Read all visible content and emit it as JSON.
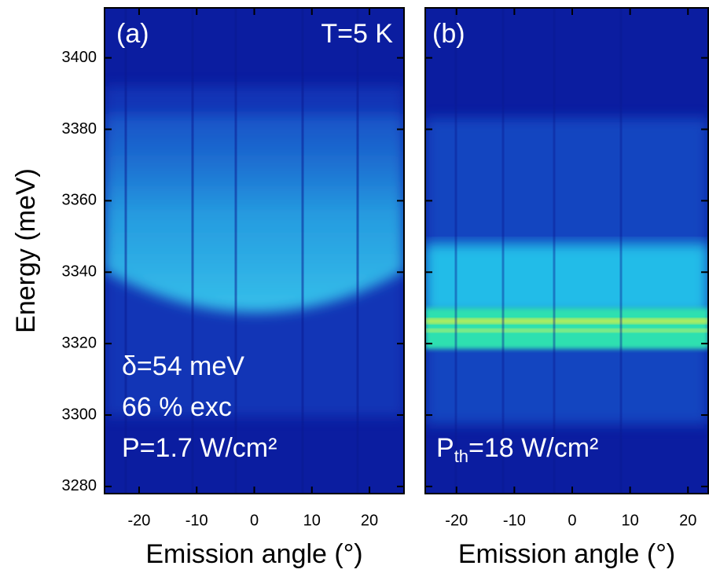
{
  "chart_data": [
    {
      "type": "heatmap",
      "ylabel": "Energy (meV)",
      "xlabel": "Emission angle (°)",
      "xlim": [
        -26,
        26
      ],
      "xticks": [
        -20,
        -10,
        0,
        10,
        20
      ],
      "ylim": [
        3278,
        3414
      ],
      "yticks": [
        3280,
        3300,
        3320,
        3340,
        3360,
        3380,
        3400
      ],
      "annotations": [
        "(a)",
        "T=5 K",
        "δ=54 meV",
        "66 % exc",
        "P=1.7 W/cm²"
      ]
    },
    {
      "type": "heatmap",
      "xlabel": "Emission angle (°)",
      "xlim": [
        -25.4,
        23.5
      ],
      "xticks": [
        -20,
        -10,
        0,
        10,
        20
      ],
      "ylim": [
        3278,
        3414
      ],
      "yticks": [
        3280,
        3300,
        3320,
        3340,
        3360,
        3380,
        3400
      ],
      "annotations": [
        "(b)"
      ],
      "power_label": {
        "base": "P",
        "sub": "th",
        "rest": "=18 W/cm²"
      }
    }
  ]
}
